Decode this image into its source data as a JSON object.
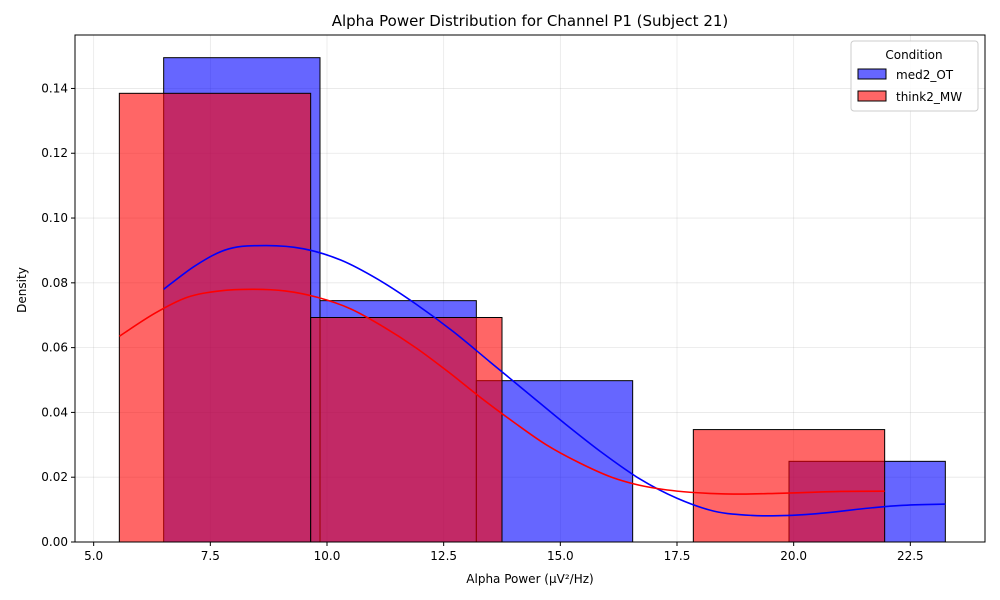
{
  "chart_data": {
    "type": "histogram",
    "title": "Alpha Power Distribution for Channel P1 (Subject 21)",
    "xlabel": "Alpha Power (μV²/Hz)",
    "ylabel": "Density",
    "xlim": [
      4.6,
      24.1
    ],
    "ylim": [
      0,
      0.1565
    ],
    "xticks": [
      5.0,
      7.5,
      10.0,
      12.5,
      15.0,
      17.5,
      20.0,
      22.5
    ],
    "xtick_labels": [
      "5.0",
      "7.5",
      "10.0",
      "12.5",
      "15.0",
      "17.5",
      "20.0",
      "22.5"
    ],
    "yticks": [
      0.0,
      0.02,
      0.04,
      0.06,
      0.08,
      0.1,
      0.12,
      0.14
    ],
    "ytick_labels": [
      "0.00",
      "0.02",
      "0.04",
      "0.06",
      "0.08",
      "0.10",
      "0.12",
      "0.14"
    ],
    "grid": true,
    "legend": {
      "title": "Condition",
      "position": "top-right",
      "entries": [
        "med2_OT",
        "think2_MW"
      ]
    },
    "series": [
      {
        "name": "med2_OT",
        "color": "#0000ff",
        "bin_edges": [
          6.5,
          9.85,
          13.2,
          16.55,
          19.9,
          23.25
        ],
        "densities": [
          0.1495,
          0.0745,
          0.0498,
          0.0,
          0.0249
        ],
        "kde": {
          "x": [
            6.5,
            7.2,
            7.9,
            8.7,
            9.5,
            10.3,
            11.1,
            11.9,
            12.7,
            13.5,
            14.3,
            15.1,
            15.9,
            16.7,
            17.5,
            18.3,
            19.1,
            19.9,
            20.7,
            21.5,
            22.3,
            23.25
          ],
          "y": [
            0.078,
            0.0855,
            0.0905,
            0.0915,
            0.0905,
            0.087,
            0.081,
            0.0735,
            0.065,
            0.0555,
            0.046,
            0.0365,
            0.0275,
            0.0195,
            0.0135,
            0.0095,
            0.0082,
            0.0082,
            0.009,
            0.0103,
            0.0113,
            0.0117
          ]
        }
      },
      {
        "name": "think2_MW",
        "color": "#ff0000",
        "bin_edges": [
          5.55,
          9.65,
          13.75,
          17.85,
          21.95
        ],
        "densities": [
          0.1385,
          0.0693,
          0.0,
          0.0347
        ],
        "kde": {
          "x": [
            5.55,
            6.3,
            7.0,
            7.7,
            8.4,
            9.1,
            9.8,
            10.5,
            11.2,
            11.9,
            12.6,
            13.3,
            14.0,
            14.7,
            15.4,
            16.1,
            16.8,
            17.5,
            18.2,
            18.9,
            19.6,
            20.3,
            21.0,
            21.95
          ],
          "y": [
            0.0635,
            0.0705,
            0.0755,
            0.0775,
            0.078,
            0.0775,
            0.0755,
            0.072,
            0.0665,
            0.06,
            0.0525,
            0.0445,
            0.037,
            0.03,
            0.0245,
            0.02,
            0.0172,
            0.0157,
            0.015,
            0.0148,
            0.015,
            0.0153,
            0.0156,
            0.0157
          ]
        }
      }
    ]
  }
}
